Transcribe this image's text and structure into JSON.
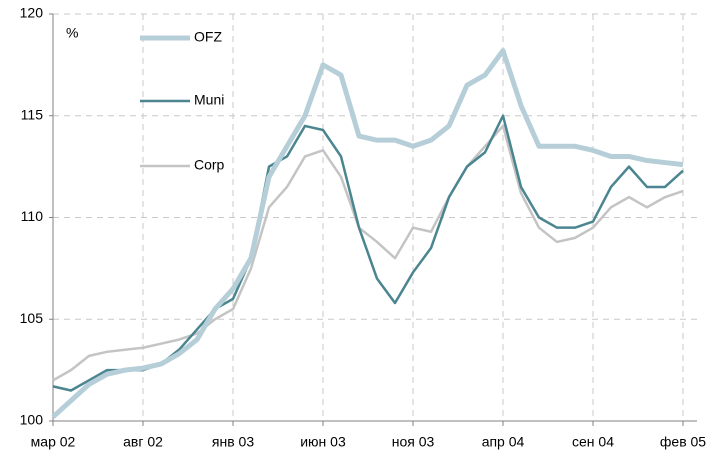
{
  "chart_data": {
    "type": "line",
    "unit_label": "%",
    "categories": [
      "мар 02",
      null,
      null,
      null,
      null,
      "авг 02",
      null,
      null,
      null,
      null,
      "янв 03",
      null,
      null,
      null,
      null,
      "июн 03",
      null,
      null,
      null,
      null,
      "ноя 03",
      null,
      null,
      null,
      null,
      "апр 04",
      null,
      null,
      null,
      null,
      "сен 04",
      null,
      null,
      null,
      null,
      "фев 05"
    ],
    "series": [
      {
        "name": "OFZ",
        "color": "#b5ced7",
        "values": [
          100.2,
          101,
          101.8,
          102.3,
          102.5,
          102.6,
          102.8,
          103.3,
          104,
          105.5,
          106.5,
          108,
          112,
          113.5,
          115,
          117.5,
          117,
          114,
          113.8,
          113.8,
          113.5,
          113.8,
          114.5,
          116.5,
          117,
          118.2,
          115.5,
          113.5,
          113.5,
          113.5,
          113.3,
          113,
          113,
          112.8,
          112.7,
          112.6
        ]
      },
      {
        "name": "Muni",
        "color": "#4a8590",
        "values": [
          101.7,
          101.5,
          102,
          102.5,
          102.5,
          102.5,
          102.8,
          103.5,
          104.5,
          105.5,
          106,
          108,
          112.5,
          113,
          114.5,
          114.3,
          113,
          109.5,
          107,
          105.8,
          107.3,
          108.5,
          111,
          112.5,
          113.2,
          115,
          111.5,
          110,
          109.5,
          109.5,
          109.8,
          111.5,
          112.5,
          111.5,
          111.5,
          112.3
        ]
      },
      {
        "name": "Corp",
        "color": "#c4c4c4",
        "values": [
          102,
          102.5,
          103.2,
          103.4,
          103.5,
          103.6,
          103.8,
          104,
          104.3,
          105,
          105.5,
          107.5,
          110.5,
          111.5,
          113,
          113.3,
          112,
          109.5,
          108.8,
          108,
          109.5,
          109.3,
          111,
          112.5,
          113.5,
          114.5,
          111.2,
          109.5,
          108.8,
          109,
          109.5,
          110.5,
          111,
          110.5,
          111,
          111.3
        ]
      }
    ],
    "ylim": [
      100,
      120
    ],
    "yticks": [
      100,
      105,
      110,
      115,
      120
    ],
    "grid": true
  }
}
